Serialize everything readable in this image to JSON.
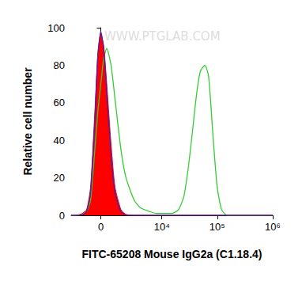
{
  "chart_data": {
    "type": "line",
    "x_label": "FITC-65208 Mouse IgG2a (C1.18.4)",
    "y_label": "Relative cell number",
    "watermark": "WWW.PTGLAB.COM",
    "log": "x",
    "xlim": [
      -2500,
      1000000
    ],
    "xticks": [
      0,
      {
        "value": 10000,
        "label": "10⁴"
      },
      {
        "value": 100000,
        "label": "10⁵"
      },
      {
        "value": 1000000,
        "label": "10⁶"
      }
    ],
    "ylim": [
      0,
      100
    ],
    "yticks": [
      0,
      20,
      40,
      60,
      80,
      100
    ],
    "grid": false,
    "x": [
      -2500,
      -2000,
      -1500,
      -1000,
      -700,
      -400,
      -200,
      0,
      200,
      400,
      700,
      1000,
      1500,
      2000,
      3000,
      4000,
      6000,
      8000,
      10000,
      15000,
      20000,
      25000,
      30000,
      35000,
      40000,
      45000,
      50000,
      60000,
      70000,
      85000,
      100000,
      120000,
      150000,
      200000,
      1000000
    ],
    "series": [
      {
        "type": "line",
        "color": "#33cc33",
        "values": [
          0,
          0,
          0.5,
          2,
          8,
          35,
          55,
          70,
          84,
          89,
          80,
          62,
          35,
          20,
          8,
          4,
          2,
          1,
          1,
          1,
          3,
          10,
          25,
          42,
          58,
          70,
          77,
          80,
          74,
          40,
          15,
          3,
          0,
          0,
          0
        ]
      },
      {
        "type": "area",
        "color": "#ff0000",
        "values": [
          0,
          0,
          0.5,
          3,
          15,
          55,
          85,
          97,
          90,
          70,
          38,
          15,
          3,
          0.5,
          0,
          0,
          0,
          0,
          0,
          0,
          0,
          0,
          0,
          0,
          0,
          0,
          0,
          0,
          0,
          0,
          0,
          0,
          0,
          0,
          0
        ]
      },
      {
        "type": "line",
        "color": "#4b1fa8",
        "values": [
          0,
          0,
          0,
          2,
          12,
          50,
          85,
          98,
          88,
          65,
          32,
          12,
          2,
          0,
          0,
          0,
          0,
          0,
          0,
          0,
          0,
          0,
          0,
          0,
          0,
          0,
          0,
          0,
          0,
          0,
          0,
          0,
          0,
          0,
          0
        ]
      }
    ]
  }
}
